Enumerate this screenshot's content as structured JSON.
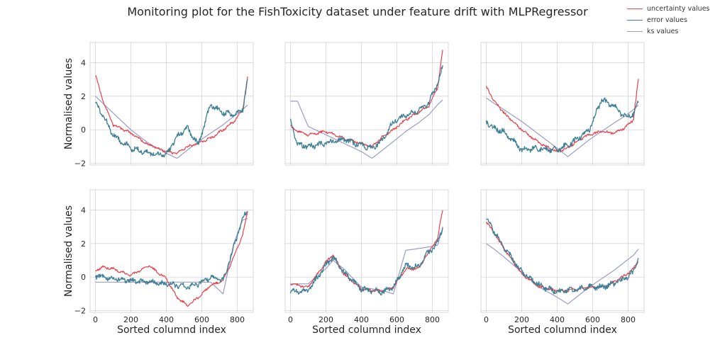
{
  "title": "Monitoring plot for the FishToxicity dataset under feature drift with MLPRegressor",
  "legend": [
    {
      "label": "uncertainty values",
      "color": "#e8424b"
    },
    {
      "label": "error values",
      "color": "#3d7f96"
    },
    {
      "label": "ks values",
      "color": "#9b9cc6"
    }
  ],
  "chart_data": [
    {
      "type": "line",
      "panel": "row1-col1",
      "xlabel": "",
      "ylabel": "Normalised values",
      "xlim": [
        -30,
        890
      ],
      "ylim": [
        -2.1,
        5.2
      ],
      "xticks": [
        0,
        200,
        400,
        600,
        800
      ],
      "yticks": [
        -2,
        0,
        2,
        4
      ],
      "x": [
        0,
        40,
        100,
        200,
        300,
        400,
        460,
        520,
        580,
        650,
        720,
        780,
        830,
        860
      ],
      "series": [
        {
          "name": "uncertainty values",
          "values": [
            3.3,
            1.8,
            0.3,
            -0.2,
            -0.9,
            -1.3,
            -1.4,
            -1.0,
            -0.8,
            -0.5,
            0.0,
            0.5,
            1.2,
            3.3
          ]
        },
        {
          "name": "error values",
          "values": [
            1.6,
            0.9,
            -0.3,
            -1.1,
            -1.4,
            -1.5,
            -0.4,
            0.1,
            -0.9,
            1.5,
            1.0,
            0.9,
            1.2,
            3.1
          ]
        },
        {
          "name": "ks values",
          "values": [
            2.0,
            1.6,
            1.0,
            0.0,
            -0.8,
            -1.4,
            -1.7,
            -1.2,
            -0.7,
            -0.2,
            0.3,
            0.8,
            1.2,
            1.5
          ]
        }
      ]
    },
    {
      "type": "line",
      "panel": "row1-col2",
      "xlabel": "",
      "ylabel": "",
      "xlim": [
        -30,
        890
      ],
      "ylim": [
        -2.1,
        5.2
      ],
      "xticks": [
        0,
        200,
        400,
        600,
        800
      ],
      "yticks": [
        -2,
        0,
        2,
        4
      ],
      "x": [
        0,
        40,
        100,
        200,
        300,
        400,
        460,
        520,
        580,
        650,
        720,
        780,
        830,
        860
      ],
      "series": [
        {
          "name": "uncertainty values",
          "values": [
            0.2,
            -0.1,
            -0.3,
            -0.1,
            -0.5,
            -0.8,
            -1.0,
            -0.4,
            0.0,
            0.6,
            1.0,
            1.4,
            2.5,
            4.9
          ]
        },
        {
          "name": "error values",
          "values": [
            0.5,
            -0.9,
            -1.0,
            -0.8,
            -0.6,
            -0.9,
            -1.1,
            -0.6,
            0.5,
            0.9,
            1.1,
            1.6,
            2.8,
            3.8
          ]
        },
        {
          "name": "ks values",
          "values": [
            1.7,
            1.7,
            0.2,
            -0.3,
            -0.8,
            -1.3,
            -1.7,
            -1.2,
            -0.7,
            -0.1,
            0.4,
            0.9,
            1.5,
            1.8
          ]
        }
      ]
    },
    {
      "type": "line",
      "panel": "row1-col3",
      "xlabel": "",
      "ylabel": "",
      "xlim": [
        -30,
        890
      ],
      "ylim": [
        -2.1,
        5.2
      ],
      "xticks": [
        0,
        200,
        400,
        600,
        800
      ],
      "yticks": [
        -2,
        0,
        2,
        4
      ],
      "x": [
        0,
        40,
        100,
        200,
        300,
        400,
        460,
        520,
        580,
        650,
        720,
        780,
        830,
        860
      ],
      "series": [
        {
          "name": "uncertainty values",
          "values": [
            2.6,
            1.8,
            1.0,
            0.0,
            -0.8,
            -1.3,
            -1.1,
            -0.6,
            -0.3,
            -0.1,
            -0.2,
            0.1,
            0.6,
            3.2
          ]
        },
        {
          "name": "error values",
          "values": [
            0.5,
            0.1,
            -0.1,
            -1.2,
            -1.1,
            -1.2,
            -0.9,
            -0.5,
            0.0,
            1.8,
            1.4,
            0.8,
            0.9,
            1.8
          ]
        },
        {
          "name": "ks values",
          "values": [
            1.9,
            1.6,
            1.2,
            0.5,
            -0.3,
            -1.1,
            -1.6,
            -1.1,
            -0.6,
            -0.1,
            0.4,
            0.8,
            1.2,
            1.5
          ]
        }
      ]
    },
    {
      "type": "line",
      "panel": "row2-col1",
      "xlabel": "Sorted columnd index",
      "ylabel": "Normalised values",
      "xlim": [
        -30,
        890
      ],
      "ylim": [
        -2.1,
        5.2
      ],
      "xticks": [
        0,
        200,
        400,
        600,
        800
      ],
      "yticks": [
        -2,
        0,
        2,
        4
      ],
      "x": [
        0,
        40,
        100,
        200,
        300,
        400,
        460,
        520,
        580,
        650,
        720,
        780,
        830,
        860
      ],
      "series": [
        {
          "name": "uncertainty values",
          "values": [
            0.4,
            0.6,
            0.5,
            0.1,
            0.7,
            -0.1,
            -1.2,
            -1.7,
            -1.2,
            -0.5,
            -0.2,
            1.2,
            2.5,
            4.0
          ]
        },
        {
          "name": "error values",
          "values": [
            0.1,
            0.0,
            -0.1,
            -0.2,
            -0.3,
            -0.4,
            -0.5,
            -0.6,
            -0.4,
            0.0,
            -0.2,
            1.8,
            3.5,
            4.0
          ]
        },
        {
          "name": "ks values",
          "values": [
            -0.3,
            -0.3,
            -0.3,
            -0.3,
            -0.3,
            -0.3,
            -0.3,
            -0.3,
            -0.3,
            -0.3,
            -1.0,
            2.0,
            3.4,
            3.5
          ]
        }
      ]
    },
    {
      "type": "line",
      "panel": "row2-col2",
      "xlabel": "Sorted columnd index",
      "ylabel": "",
      "xlim": [
        -30,
        890
      ],
      "ylim": [
        -2.1,
        5.2
      ],
      "xticks": [
        0,
        200,
        400,
        600,
        800
      ],
      "yticks": [
        -2,
        0,
        2,
        4
      ],
      "x": [
        0,
        40,
        100,
        200,
        240,
        300,
        400,
        460,
        520,
        580,
        650,
        720,
        780,
        830,
        860
      ],
      "series": [
        {
          "name": "uncertainty values",
          "values": [
            -0.4,
            -0.5,
            -0.6,
            0.9,
            1.3,
            0.2,
            -0.7,
            -0.8,
            -0.8,
            -0.6,
            0.5,
            0.5,
            1.5,
            2.3,
            4.2
          ]
        },
        {
          "name": "error values",
          "values": [
            -0.8,
            -0.9,
            -0.8,
            0.7,
            1.2,
            0.3,
            -0.7,
            -0.8,
            -0.9,
            -0.6,
            0.7,
            0.6,
            1.5,
            2.0,
            3.1
          ]
        },
        {
          "name": "ks values",
          "values": [
            -0.4,
            -0.4,
            -0.4,
            0.5,
            1.0,
            0.5,
            -0.6,
            -0.7,
            -0.8,
            -1.0,
            1.6,
            1.7,
            1.8,
            1.9,
            3.0
          ]
        }
      ]
    },
    {
      "type": "line",
      "panel": "row2-col3",
      "xlabel": "Sorted columnd index",
      "ylabel": "",
      "xlim": [
        -30,
        890
      ],
      "ylim": [
        -2.1,
        5.2
      ],
      "xticks": [
        0,
        200,
        400,
        600,
        800
      ],
      "yticks": [
        -2,
        0,
        2,
        4
      ],
      "x": [
        0,
        40,
        100,
        200,
        300,
        400,
        460,
        520,
        580,
        650,
        720,
        780,
        830,
        860
      ],
      "series": [
        {
          "name": "uncertainty values",
          "values": [
            3.3,
            2.7,
            1.7,
            0.2,
            -0.6,
            -0.8,
            -0.8,
            -0.7,
            -0.6,
            -0.6,
            -0.3,
            0.1,
            0.5,
            1.0
          ]
        },
        {
          "name": "error values",
          "values": [
            3.5,
            2.8,
            1.8,
            0.3,
            -0.5,
            -0.9,
            -0.8,
            -0.7,
            -0.6,
            -0.6,
            -0.4,
            -0.1,
            0.3,
            1.3
          ]
        },
        {
          "name": "ks values",
          "values": [
            2.0,
            1.7,
            1.2,
            0.3,
            -0.6,
            -1.2,
            -1.6,
            -1.1,
            -0.6,
            -0.1,
            0.4,
            0.9,
            1.3,
            1.7
          ]
        }
      ]
    }
  ]
}
